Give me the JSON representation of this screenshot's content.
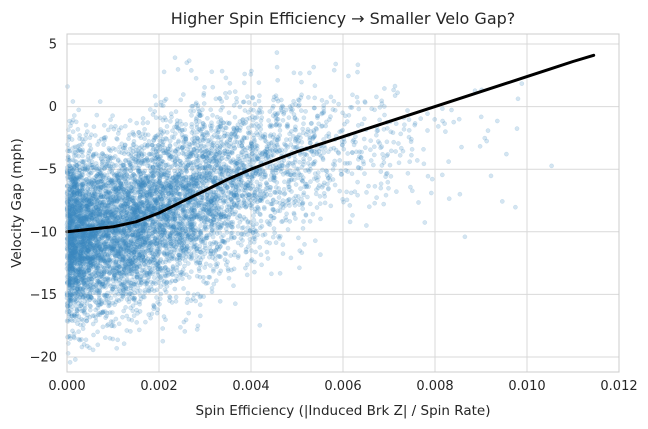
{
  "chart_data": {
    "type": "scatter",
    "title": "Higher Spin Efficiency → Smaller Velo Gap?",
    "xlabel": "Spin Efficiency (|Induced Brk Z| / Spin Rate)",
    "ylabel": "Velocity Gap (mph)",
    "xlim": [
      0,
      0.012
    ],
    "ylim": [
      -21.2,
      5.8
    ],
    "x_ticks": [
      0,
      0.002,
      0.004,
      0.006,
      0.008,
      0.01,
      0.012
    ],
    "x_tick_labels": [
      "0.000",
      "0.002",
      "0.004",
      "0.006",
      "0.008",
      "0.010",
      "0.012"
    ],
    "y_ticks": [
      -20,
      -15,
      -10,
      -5,
      0,
      5
    ],
    "y_tick_labels": [
      "−20",
      "−15",
      "−10",
      "−5",
      "0",
      "5"
    ],
    "grid": true,
    "scatter_color": "#3a87c0",
    "trend_color": "#000000",
    "scatter_cloud": [
      {
        "x": 0.0003,
        "y": -10.5,
        "sx": 0.00035,
        "sy": 3.3,
        "n": 1800
      },
      {
        "x": 0.0012,
        "y": -9.8,
        "sx": 0.0006,
        "sy": 3.2,
        "n": 2200
      },
      {
        "x": 0.0024,
        "y": -7.8,
        "sx": 0.0007,
        "sy": 3.2,
        "n": 1700
      },
      {
        "x": 0.0036,
        "y": -5.6,
        "sx": 0.0008,
        "sy": 3.0,
        "n": 1000
      },
      {
        "x": 0.005,
        "y": -3.8,
        "sx": 0.0009,
        "sy": 2.7,
        "n": 450
      },
      {
        "x": 0.0065,
        "y": -2.5,
        "sx": 0.001,
        "sy": 2.6,
        "n": 140
      },
      {
        "x": 0.0082,
        "y": -3.5,
        "sx": 0.0012,
        "sy": 4.0,
        "n": 30
      }
    ],
    "series": [
      {
        "type": "line",
        "x": [
          0.0,
          0.0005,
          0.001,
          0.0015,
          0.002,
          0.0025,
          0.003,
          0.0035,
          0.004,
          0.0045,
          0.005,
          0.0055,
          0.006,
          0.0065,
          0.007,
          0.0075,
          0.008,
          0.0085,
          0.009,
          0.0095,
          0.01,
          0.0105,
          0.011,
          0.01145
        ],
        "y": [
          -10.0,
          -9.8,
          -9.6,
          -9.2,
          -8.5,
          -7.6,
          -6.7,
          -5.8,
          -5.0,
          -4.3,
          -3.6,
          -3.0,
          -2.4,
          -1.8,
          -1.2,
          -0.6,
          0.0,
          0.6,
          1.2,
          1.8,
          2.4,
          3.0,
          3.6,
          4.1
        ]
      }
    ]
  }
}
